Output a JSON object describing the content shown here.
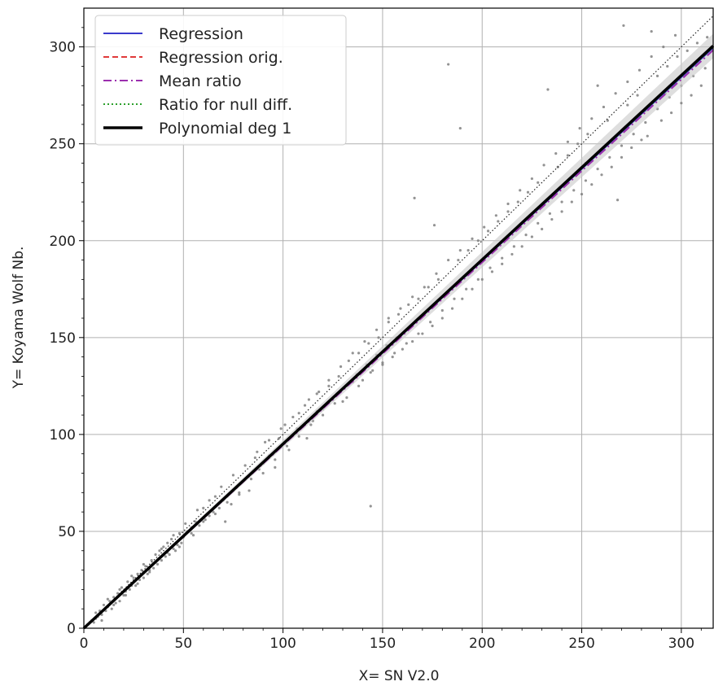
{
  "chart_data": {
    "type": "scatter",
    "xlabel": "X= SN V2.0",
    "ylabel": "Y= Koyama Wolf Nb.",
    "xlim": [
      0,
      316
    ],
    "ylim": [
      0,
      320
    ],
    "xticks": [
      0,
      50,
      100,
      150,
      200,
      250,
      300
    ],
    "yticks": [
      0,
      50,
      100,
      150,
      200,
      250,
      300
    ],
    "grid": true,
    "legend_position": "top-left",
    "diagonal": {
      "style": "dotted",
      "color": "#222222",
      "from": [
        0,
        0
      ],
      "to": [
        316,
        316
      ]
    },
    "lines": [
      {
        "name": "Regression",
        "color": "#3a3acc",
        "style": "solid",
        "slope": 0.948,
        "intercept": 0
      },
      {
        "name": "Regression orig.",
        "color": "#e03a3a",
        "style": "dashed",
        "slope": 0.95,
        "intercept": 0
      },
      {
        "name": "Mean ratio",
        "color": "#9b2fae",
        "style": "dashdot",
        "slope": 0.944,
        "intercept": 0
      },
      {
        "name": "Ratio for null diff.",
        "color": "#2ca02c",
        "style": "dotted",
        "slope": 0.949,
        "intercept": 0
      },
      {
        "name": "Polynomial deg 1",
        "color": "#000000",
        "style": "solid-thick",
        "slope": 0.951,
        "intercept": 0
      }
    ],
    "scatter_color": "#808080",
    "scatter_points": [
      [
        1,
        1
      ],
      [
        2,
        2
      ],
      [
        3,
        3
      ],
      [
        4,
        4
      ],
      [
        5,
        3
      ],
      [
        6,
        5
      ],
      [
        7,
        6
      ],
      [
        8,
        9
      ],
      [
        9,
        7
      ],
      [
        10,
        12
      ],
      [
        11,
        9
      ],
      [
        12,
        11
      ],
      [
        13,
        14
      ],
      [
        14,
        10
      ],
      [
        15,
        16
      ],
      [
        16,
        13
      ],
      [
        17,
        18
      ],
      [
        18,
        14
      ],
      [
        19,
        21
      ],
      [
        20,
        17
      ],
      [
        21,
        19
      ],
      [
        22,
        24
      ],
      [
        23,
        20
      ],
      [
        24,
        22
      ],
      [
        25,
        26
      ],
      [
        26,
        22
      ],
      [
        27,
        28
      ],
      [
        28,
        25
      ],
      [
        29,
        30
      ],
      [
        30,
        26
      ],
      [
        31,
        32
      ],
      [
        32,
        28
      ],
      [
        33,
        30
      ],
      [
        34,
        35
      ],
      [
        35,
        31
      ],
      [
        36,
        38
      ],
      [
        37,
        33
      ],
      [
        38,
        40
      ],
      [
        39,
        35
      ],
      [
        40,
        42
      ],
      [
        41,
        37
      ],
      [
        42,
        44
      ],
      [
        43,
        38
      ],
      [
        44,
        46
      ],
      [
        45,
        41
      ],
      [
        46,
        40
      ],
      [
        47,
        43
      ],
      [
        48,
        49
      ],
      [
        49,
        44
      ],
      [
        50,
        47
      ],
      [
        52,
        50
      ],
      [
        54,
        52
      ],
      [
        55,
        48
      ],
      [
        56,
        55
      ],
      [
        58,
        53
      ],
      [
        60,
        62
      ],
      [
        61,
        56
      ],
      [
        63,
        58
      ],
      [
        65,
        60
      ],
      [
        66,
        68
      ],
      [
        68,
        62
      ],
      [
        70,
        66
      ],
      [
        71,
        55
      ],
      [
        72,
        68
      ],
      [
        74,
        64
      ],
      [
        75,
        71
      ],
      [
        77,
        73
      ],
      [
        78,
        69
      ],
      [
        80,
        76
      ],
      [
        82,
        78
      ],
      [
        83,
        71
      ],
      [
        85,
        81
      ],
      [
        86,
        88
      ],
      [
        88,
        82
      ],
      [
        90,
        85
      ],
      [
        91,
        96
      ],
      [
        93,
        89
      ],
      [
        95,
        90
      ],
      [
        96,
        83
      ],
      [
        98,
        98
      ],
      [
        100,
        95
      ],
      [
        101,
        105
      ],
      [
        103,
        92
      ],
      [
        105,
        100
      ],
      [
        107,
        103
      ],
      [
        108,
        111
      ],
      [
        110,
        104
      ],
      [
        112,
        98
      ],
      [
        113,
        118
      ],
      [
        115,
        107
      ],
      [
        117,
        112
      ],
      [
        118,
        122
      ],
      [
        120,
        110
      ],
      [
        122,
        116
      ],
      [
        123,
        125
      ],
      [
        125,
        118
      ],
      [
        127,
        121
      ],
      [
        128,
        130
      ],
      [
        130,
        117
      ],
      [
        132,
        125
      ],
      [
        133,
        138
      ],
      [
        135,
        127
      ],
      [
        137,
        131
      ],
      [
        138,
        142
      ],
      [
        140,
        128
      ],
      [
        142,
        136
      ],
      [
        143,
        147
      ],
      [
        144,
        63
      ],
      [
        145,
        133
      ],
      [
        147,
        141
      ],
      [
        148,
        150
      ],
      [
        150,
        137
      ],
      [
        152,
        146
      ],
      [
        153,
        158
      ],
      [
        155,
        140
      ],
      [
        157,
        150
      ],
      [
        158,
        162
      ],
      [
        160,
        144
      ],
      [
        162,
        154
      ],
      [
        163,
        167
      ],
      [
        165,
        148
      ],
      [
        166,
        222
      ],
      [
        167,
        158
      ],
      [
        168,
        170
      ],
      [
        170,
        152
      ],
      [
        172,
        163
      ],
      [
        173,
        176
      ],
      [
        175,
        156
      ],
      [
        176,
        208
      ],
      [
        177,
        168
      ],
      [
        178,
        180
      ],
      [
        180,
        160
      ],
      [
        182,
        173
      ],
      [
        183,
        291
      ],
      [
        185,
        165
      ],
      [
        187,
        177
      ],
      [
        188,
        190
      ],
      [
        189,
        258
      ],
      [
        190,
        170
      ],
      [
        192,
        182
      ],
      [
        193,
        195
      ],
      [
        195,
        175
      ],
      [
        197,
        187
      ],
      [
        198,
        200
      ],
      [
        200,
        180
      ],
      [
        202,
        192
      ],
      [
        203,
        205
      ],
      [
        205,
        184
      ],
      [
        207,
        196
      ],
      [
        208,
        210
      ],
      [
        210,
        188
      ],
      [
        212,
        201
      ],
      [
        213,
        215
      ],
      [
        215,
        193
      ],
      [
        217,
        206
      ],
      [
        218,
        220
      ],
      [
        220,
        197
      ],
      [
        222,
        211
      ],
      [
        223,
        225
      ],
      [
        225,
        202
      ],
      [
        227,
        216
      ],
      [
        228,
        230
      ],
      [
        230,
        206
      ],
      [
        232,
        220
      ],
      [
        233,
        278
      ],
      [
        235,
        211
      ],
      [
        237,
        225
      ],
      [
        238,
        238
      ],
      [
        240,
        215
      ],
      [
        242,
        230
      ],
      [
        243,
        244
      ],
      [
        245,
        220
      ],
      [
        247,
        235
      ],
      [
        248,
        250
      ],
      [
        250,
        224
      ],
      [
        252,
        240
      ],
      [
        253,
        255
      ],
      [
        255,
        229
      ],
      [
        257,
        244
      ],
      [
        258,
        280
      ],
      [
        260,
        234
      ],
      [
        262,
        249
      ],
      [
        263,
        262
      ],
      [
        265,
        238
      ],
      [
        267,
        254
      ],
      [
        268,
        221
      ],
      [
        270,
        243
      ],
      [
        271,
        311
      ],
      [
        272,
        258
      ],
      [
        273,
        270
      ],
      [
        275,
        248
      ],
      [
        277,
        262
      ],
      [
        278,
        275
      ],
      [
        280,
        252
      ],
      [
        282,
        267
      ],
      [
        283,
        254
      ],
      [
        285,
        308
      ],
      [
        287,
        272
      ],
      [
        288,
        285
      ],
      [
        290,
        262
      ],
      [
        292,
        276
      ],
      [
        293,
        290
      ],
      [
        295,
        266
      ],
      [
        297,
        281
      ],
      [
        298,
        295
      ],
      [
        300,
        271
      ],
      [
        302,
        286
      ],
      [
        303,
        298
      ],
      [
        305,
        275
      ],
      [
        307,
        291
      ],
      [
        308,
        302
      ],
      [
        310,
        280
      ],
      [
        312,
        296
      ],
      [
        313,
        305
      ],
      [
        315,
        300
      ],
      [
        6,
        8
      ],
      [
        9,
        4
      ],
      [
        12,
        15
      ],
      [
        15,
        12
      ],
      [
        18,
        20
      ],
      [
        21,
        17
      ],
      [
        24,
        27
      ],
      [
        27,
        23
      ],
      [
        30,
        33
      ],
      [
        33,
        29
      ],
      [
        36,
        34
      ],
      [
        39,
        41
      ],
      [
        42,
        39
      ],
      [
        45,
        48
      ],
      [
        48,
        42
      ],
      [
        51,
        54
      ],
      [
        54,
        49
      ],
      [
        57,
        61
      ],
      [
        60,
        55
      ],
      [
        63,
        66
      ],
      [
        66,
        59
      ],
      [
        69,
        73
      ],
      [
        72,
        65
      ],
      [
        75,
        79
      ],
      [
        78,
        70
      ],
      [
        81,
        84
      ],
      [
        84,
        77
      ],
      [
        87,
        91
      ],
      [
        90,
        80
      ],
      [
        93,
        97
      ],
      [
        96,
        87
      ],
      [
        99,
        103
      ],
      [
        102,
        94
      ],
      [
        105,
        109
      ],
      [
        108,
        99
      ],
      [
        111,
        115
      ],
      [
        114,
        105
      ],
      [
        117,
        121
      ],
      [
        120,
        113
      ],
      [
        123,
        128
      ],
      [
        126,
        116
      ],
      [
        129,
        135
      ],
      [
        132,
        119
      ],
      [
        135,
        142
      ],
      [
        138,
        125
      ],
      [
        141,
        148
      ],
      [
        144,
        132
      ],
      [
        147,
        154
      ],
      [
        150,
        136
      ],
      [
        153,
        160
      ],
      [
        156,
        142
      ],
      [
        159,
        165
      ],
      [
        162,
        147
      ],
      [
        165,
        171
      ],
      [
        168,
        152
      ],
      [
        171,
        176
      ],
      [
        174,
        158
      ],
      [
        177,
        183
      ],
      [
        180,
        164
      ],
      [
        183,
        190
      ],
      [
        186,
        170
      ],
      [
        189,
        195
      ],
      [
        192,
        175
      ],
      [
        195,
        201
      ],
      [
        198,
        180
      ],
      [
        201,
        207
      ],
      [
        204,
        186
      ],
      [
        207,
        213
      ],
      [
        210,
        191
      ],
      [
        213,
        219
      ],
      [
        216,
        197
      ],
      [
        219,
        226
      ],
      [
        222,
        203
      ],
      [
        225,
        232
      ],
      [
        228,
        209
      ],
      [
        231,
        239
      ],
      [
        234,
        214
      ],
      [
        237,
        245
      ],
      [
        240,
        220
      ],
      [
        243,
        251
      ],
      [
        246,
        226
      ],
      [
        249,
        258
      ],
      [
        252,
        231
      ],
      [
        255,
        263
      ],
      [
        258,
        237
      ],
      [
        261,
        269
      ],
      [
        264,
        243
      ],
      [
        267,
        276
      ],
      [
        270,
        249
      ],
      [
        273,
        282
      ],
      [
        276,
        255
      ],
      [
        279,
        288
      ],
      [
        282,
        261
      ],
      [
        285,
        295
      ],
      [
        288,
        268
      ],
      [
        291,
        300
      ],
      [
        294,
        274
      ],
      [
        297,
        306
      ],
      [
        300,
        280
      ],
      [
        303,
        288
      ],
      [
        306,
        285
      ],
      [
        309,
        294
      ],
      [
        312,
        289
      ]
    ]
  }
}
